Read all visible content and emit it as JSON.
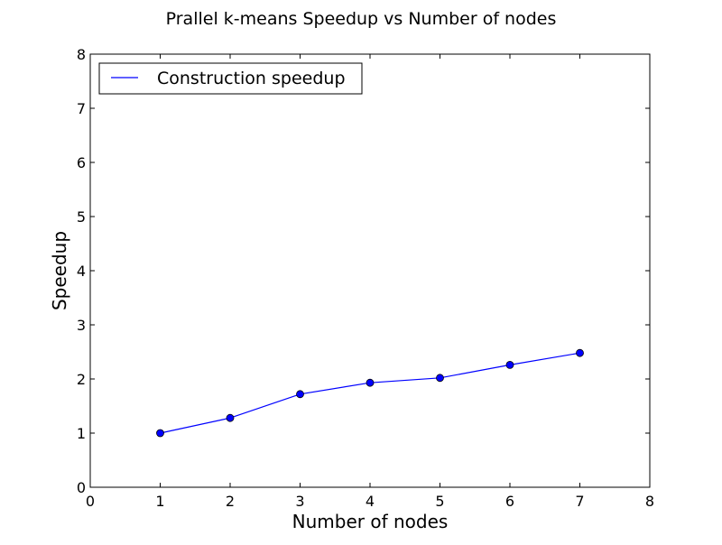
{
  "chart_data": {
    "type": "line",
    "title": "Prallel k-means Speedup vs Number of nodes",
    "xlabel": "Number of nodes",
    "ylabel": "Speedup",
    "xlim": [
      0,
      8
    ],
    "ylim": [
      0,
      8
    ],
    "x_ticks": [
      "0",
      "1",
      "2",
      "3",
      "4",
      "5",
      "6",
      "7",
      "8"
    ],
    "y_ticks": [
      "0",
      "1",
      "2",
      "3",
      "4",
      "5",
      "6",
      "7",
      "8"
    ],
    "grid": false,
    "legend_position": "top-left",
    "series": [
      {
        "name": "Construction speedup",
        "color": "#0000ff",
        "marker": "circle",
        "x": [
          1,
          2,
          3,
          4,
          5,
          6,
          7
        ],
        "y": [
          1.0,
          1.28,
          1.72,
          1.93,
          2.02,
          2.26,
          2.48
        ]
      }
    ]
  }
}
